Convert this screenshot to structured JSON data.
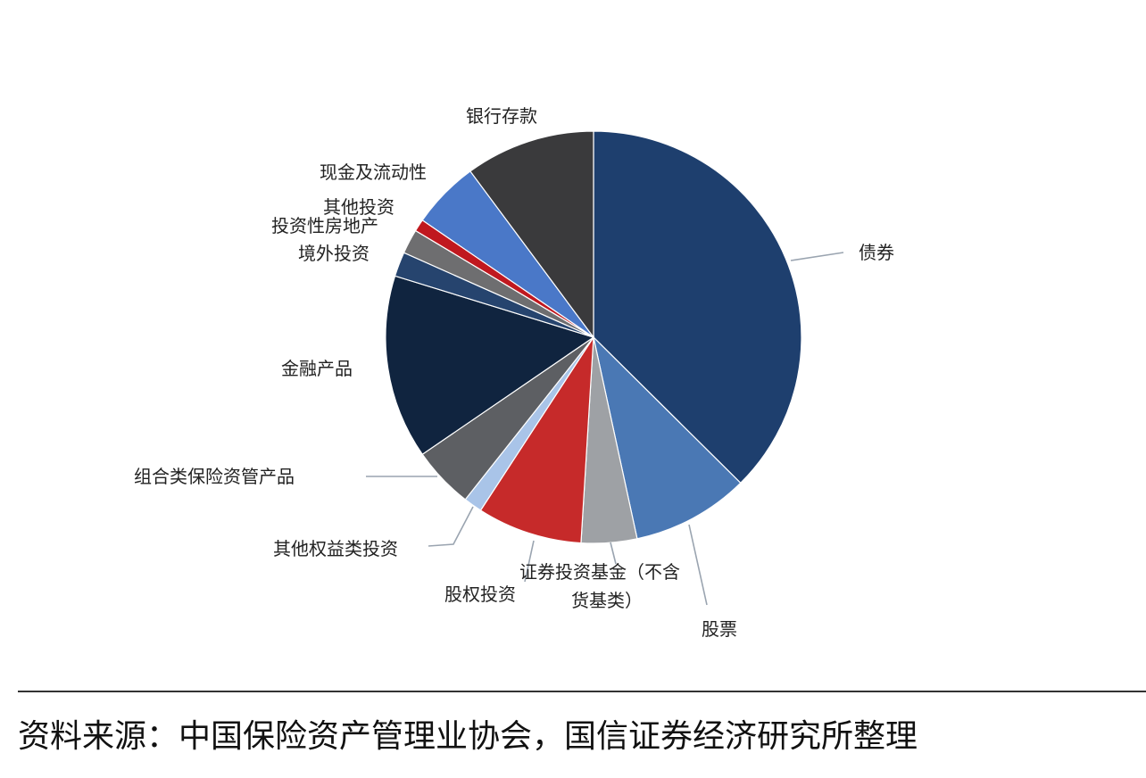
{
  "chart_data": {
    "type": "pie",
    "title": "",
    "slices": [
      {
        "label": "债券",
        "value": 39.0,
        "color": "#1e3f6e"
      },
      {
        "label": "股票",
        "value": 9.5,
        "color": "#4a78b4"
      },
      {
        "label": "证券投资基金（不含货基类）",
        "label_lines": [
          "证券投资基金（不含",
          "货基类）"
        ],
        "value": 4.5,
        "color": "#9ea1a5"
      },
      {
        "label": "股权投资",
        "value": 8.5,
        "color": "#c62a2a"
      },
      {
        "label": "其他权益类投资",
        "value": 1.5,
        "color": "#a9c4e8"
      },
      {
        "label": "组合类保险资管产品",
        "value": 5.0,
        "color": "#5d5f63"
      },
      {
        "label": "金融产品",
        "value": 15.0,
        "color": "#10243f"
      },
      {
        "label": "境外投资",
        "value": 2.0,
        "color": "#26446e"
      },
      {
        "label": "投资性房地产",
        "value": 2.0,
        "color": "#6e6e70"
      },
      {
        "label": "其他投资",
        "value": 1.0,
        "color": "#c0181f"
      },
      {
        "label": "现金及流动性",
        "value": 5.5,
        "color": "#4a78c8"
      },
      {
        "label": "银行存款",
        "value": 10.5,
        "color": "#3a3a3c"
      }
    ]
  },
  "footer": {
    "source": "资料来源：中国保险资产管理业协会，国信证券经济研究所整理"
  }
}
